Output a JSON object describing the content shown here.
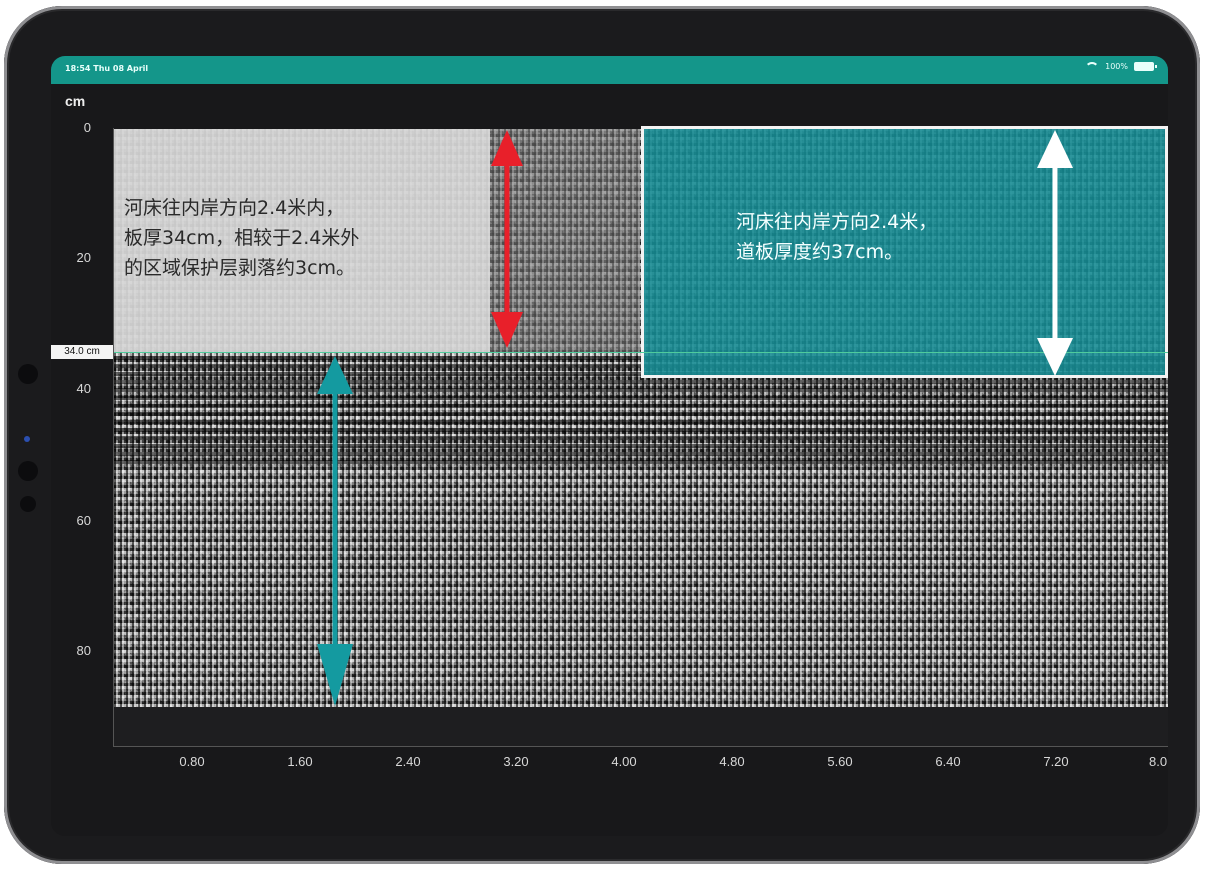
{
  "status_bar": {
    "time": "18:54 Thu 08 April",
    "battery": "100%"
  },
  "axis": {
    "y_unit": "cm",
    "y_ticks": [
      "0",
      "20",
      "40",
      "60",
      "80"
    ],
    "x_ticks": [
      "0.80",
      "1.60",
      "2.40",
      "3.20",
      "4.00",
      "4.80",
      "5.60",
      "6.40",
      "7.20",
      "8.0"
    ]
  },
  "depth_marker": {
    "label": "34.0 cm"
  },
  "annotation_left": "河床往内岸方向2.4米内，\n板厚34cm，相较于2.4米外\n的区域保护层剥落约3cm。",
  "annotation_right": "河床往内岸方向2.4米，\n道板厚度约37cm。",
  "colors": {
    "status_bar": "#14968a",
    "arrow_red": "#e8202a",
    "arrow_teal": "#149aa0",
    "arrow_white": "#ffffff",
    "annotation_right_bg": "#168c94",
    "depth_line": "#4ecb9c"
  },
  "icons": [
    "wifi-icon",
    "battery-icon"
  ]
}
